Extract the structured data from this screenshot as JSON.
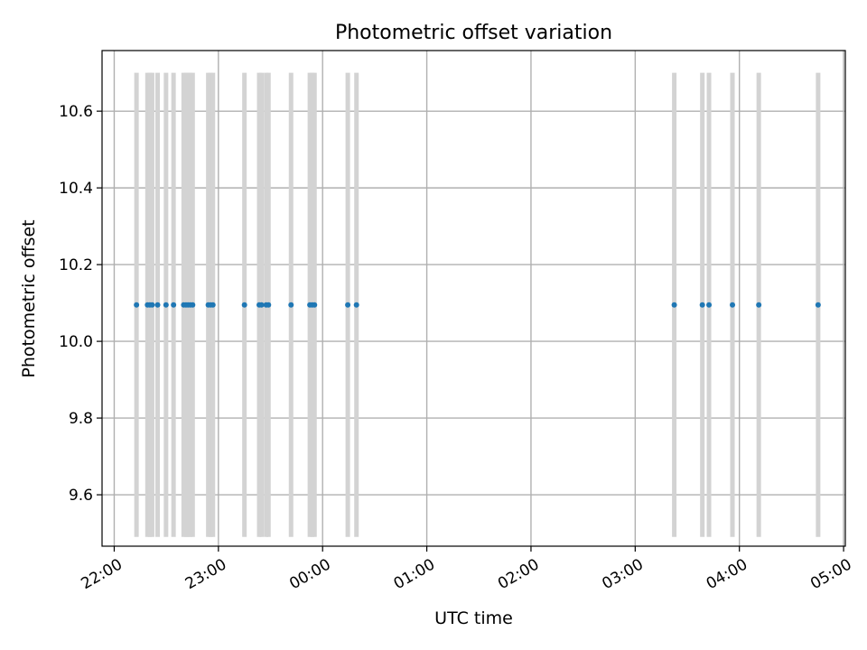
{
  "chart_data": {
    "type": "scatter",
    "title": "Photometric offset variation",
    "xlabel": "UTC time",
    "ylabel": "Photometric offset",
    "x_axis_type": "time",
    "x_start": "22:00",
    "xlim": [
      "21:53",
      "05:01"
    ],
    "ylim": [
      9.466,
      10.758
    ],
    "xticks": [
      "22:00",
      "23:00",
      "00:00",
      "01:00",
      "02:00",
      "03:00",
      "04:00",
      "05:00"
    ],
    "yticks": [
      9.6,
      9.8,
      10.0,
      10.2,
      10.4,
      10.6
    ],
    "ytick_labels": [
      "9.6",
      "9.8",
      "10.0",
      "10.2",
      "10.4",
      "10.6"
    ],
    "grid": true,
    "error_bar_color": "#d3d3d3",
    "marker_color": "#1f77b4",
    "points": [
      {
        "t": "22:12:50",
        "y": 10.095,
        "lo": 9.49,
        "hi": 10.7
      },
      {
        "t": "22:19:10",
        "y": 10.095,
        "lo": 9.49,
        "hi": 10.7
      },
      {
        "t": "22:20:30",
        "y": 10.095,
        "lo": 9.49,
        "hi": 10.7
      },
      {
        "t": "22:21:50",
        "y": 10.095,
        "lo": 9.49,
        "hi": 10.7
      },
      {
        "t": "22:25:00",
        "y": 10.095,
        "lo": 9.49,
        "hi": 10.7
      },
      {
        "t": "22:29:50",
        "y": 10.095,
        "lo": 9.49,
        "hi": 10.7
      },
      {
        "t": "22:34:10",
        "y": 10.095,
        "lo": 9.49,
        "hi": 10.7
      },
      {
        "t": "22:40:00",
        "y": 10.095,
        "lo": 9.49,
        "hi": 10.7
      },
      {
        "t": "22:41:20",
        "y": 10.095,
        "lo": 9.49,
        "hi": 10.7
      },
      {
        "t": "22:42:30",
        "y": 10.095,
        "lo": 9.49,
        "hi": 10.7
      },
      {
        "t": "22:43:50",
        "y": 10.095,
        "lo": 9.49,
        "hi": 10.7
      },
      {
        "t": "22:45:10",
        "y": 10.095,
        "lo": 9.49,
        "hi": 10.7
      },
      {
        "t": "22:54:10",
        "y": 10.095,
        "lo": 9.49,
        "hi": 10.7
      },
      {
        "t": "22:55:30",
        "y": 10.095,
        "lo": 9.49,
        "hi": 10.7
      },
      {
        "t": "22:56:50",
        "y": 10.095,
        "lo": 9.49,
        "hi": 10.7
      },
      {
        "t": "23:15:00",
        "y": 10.095,
        "lo": 9.49,
        "hi": 10.7
      },
      {
        "t": "23:23:30",
        "y": 10.095,
        "lo": 9.49,
        "hi": 10.7
      },
      {
        "t": "23:24:50",
        "y": 10.095,
        "lo": 9.49,
        "hi": 10.7
      },
      {
        "t": "23:27:30",
        "y": 10.095,
        "lo": 9.49,
        "hi": 10.7
      },
      {
        "t": "23:28:50",
        "y": 10.095,
        "lo": 9.49,
        "hi": 10.7
      },
      {
        "t": "23:41:50",
        "y": 10.095,
        "lo": 9.49,
        "hi": 10.7
      },
      {
        "t": "23:52:40",
        "y": 10.095,
        "lo": 9.49,
        "hi": 10.7
      },
      {
        "t": "23:54:00",
        "y": 10.095,
        "lo": 9.49,
        "hi": 10.7
      },
      {
        "t": "23:55:20",
        "y": 10.095,
        "lo": 9.49,
        "hi": 10.7
      },
      {
        "t": "00:14:30",
        "y": 10.095,
        "lo": 9.49,
        "hi": 10.7
      },
      {
        "t": "00:19:30",
        "y": 10.095,
        "lo": 9.49,
        "hi": 10.7
      },
      {
        "t": "03:22:30",
        "y": 10.095,
        "lo": 9.49,
        "hi": 10.7
      },
      {
        "t": "03:38:40",
        "y": 10.095,
        "lo": 9.49,
        "hi": 10.7
      },
      {
        "t": "03:42:30",
        "y": 10.095,
        "lo": 9.49,
        "hi": 10.7
      },
      {
        "t": "03:56:00",
        "y": 10.095,
        "lo": 9.49,
        "hi": 10.7
      },
      {
        "t": "04:11:10",
        "y": 10.095,
        "lo": 9.49,
        "hi": 10.7
      },
      {
        "t": "04:45:20",
        "y": 10.095,
        "lo": 9.49,
        "hi": 10.7
      }
    ]
  }
}
